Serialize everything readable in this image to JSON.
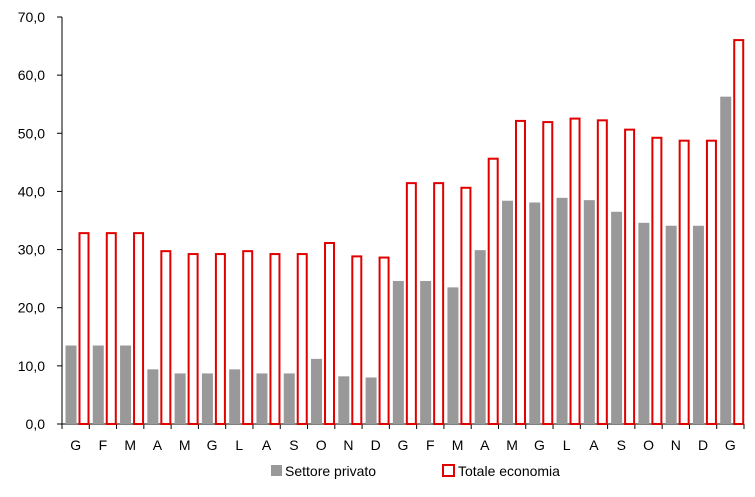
{
  "chart_data": {
    "type": "bar",
    "categories": [
      "G",
      "F",
      "M",
      "A",
      "M",
      "G",
      "L",
      "A",
      "S",
      "O",
      "N",
      "D",
      "G",
      "F",
      "M",
      "A",
      "M",
      "G",
      "L",
      "A",
      "S",
      "O",
      "N",
      "D",
      "G"
    ],
    "series": [
      {
        "name": "Settore privato",
        "color": "#999999",
        "values": [
          13.5,
          13.5,
          13.5,
          9.4,
          8.7,
          8.7,
          9.4,
          8.7,
          8.7,
          11.2,
          8.2,
          8.0,
          24.6,
          24.6,
          23.5,
          29.9,
          38.4,
          38.1,
          38.9,
          38.5,
          36.5,
          34.6,
          34.1,
          34.1,
          56.3
        ]
      },
      {
        "name": "Totale economia",
        "color": "#e00000",
        "values": [
          33.0,
          33.0,
          33.0,
          29.9,
          29.4,
          29.4,
          29.9,
          29.4,
          29.4,
          31.3,
          29.0,
          28.8,
          41.6,
          41.6,
          40.8,
          45.8,
          52.3,
          52.1,
          52.7,
          52.4,
          50.8,
          49.4,
          48.9,
          48.9,
          66.2
        ]
      }
    ],
    "ylim": [
      0,
      70
    ],
    "yticks": [
      "0,0",
      "10,0",
      "20,0",
      "30,0",
      "40,0",
      "50,0",
      "60,0",
      "70,0"
    ],
    "legend_position": "bottom-center"
  }
}
